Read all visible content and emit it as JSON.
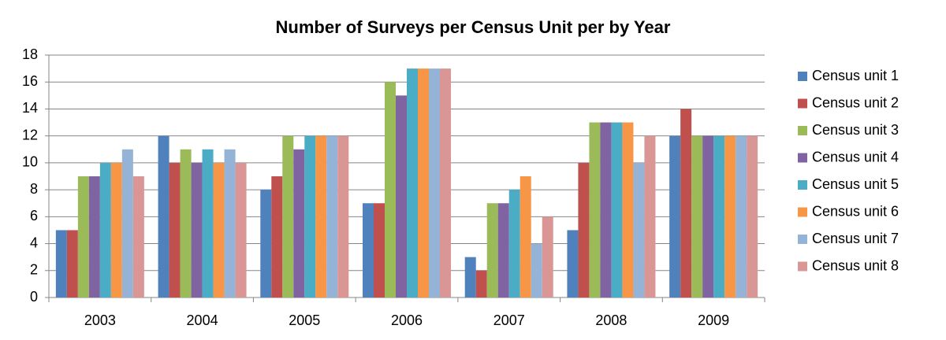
{
  "chart_data": {
    "type": "bar",
    "title": "Number of Surveys per Census Unit per by Year",
    "categories": [
      "2003",
      "2004",
      "2005",
      "2006",
      "2007",
      "2008",
      "2009"
    ],
    "series": [
      {
        "name": "Census unit 1",
        "color": "#4f81bd",
        "values": [
          5,
          12,
          8,
          7,
          3,
          5,
          12
        ]
      },
      {
        "name": "Census unit 2",
        "color": "#c0504d",
        "values": [
          5,
          10,
          9,
          7,
          2,
          10,
          14
        ]
      },
      {
        "name": "Census unit 3",
        "color": "#9bbb59",
        "values": [
          9,
          11,
          12,
          16,
          7,
          13,
          12
        ]
      },
      {
        "name": "Census unit 4",
        "color": "#8064a2",
        "values": [
          9,
          10,
          11,
          15,
          7,
          13,
          12
        ]
      },
      {
        "name": "Census unit 5",
        "color": "#4bacc6",
        "values": [
          10,
          11,
          12,
          17,
          8,
          13,
          12
        ]
      },
      {
        "name": "Census unit 6",
        "color": "#f79646",
        "values": [
          10,
          10,
          12,
          17,
          9,
          13,
          12
        ]
      },
      {
        "name": "Census unit 7",
        "color": "#95b3d7",
        "values": [
          11,
          11,
          12,
          17,
          4,
          10,
          12
        ]
      },
      {
        "name": "Census unit 8",
        "color": "#d99694",
        "values": [
          9,
          10,
          12,
          17,
          6,
          12,
          12
        ]
      }
    ],
    "ylim": [
      0,
      18
    ],
    "yticks": [
      0,
      2,
      4,
      6,
      8,
      10,
      12,
      14,
      16,
      18
    ],
    "grid": true,
    "legend": "right"
  }
}
